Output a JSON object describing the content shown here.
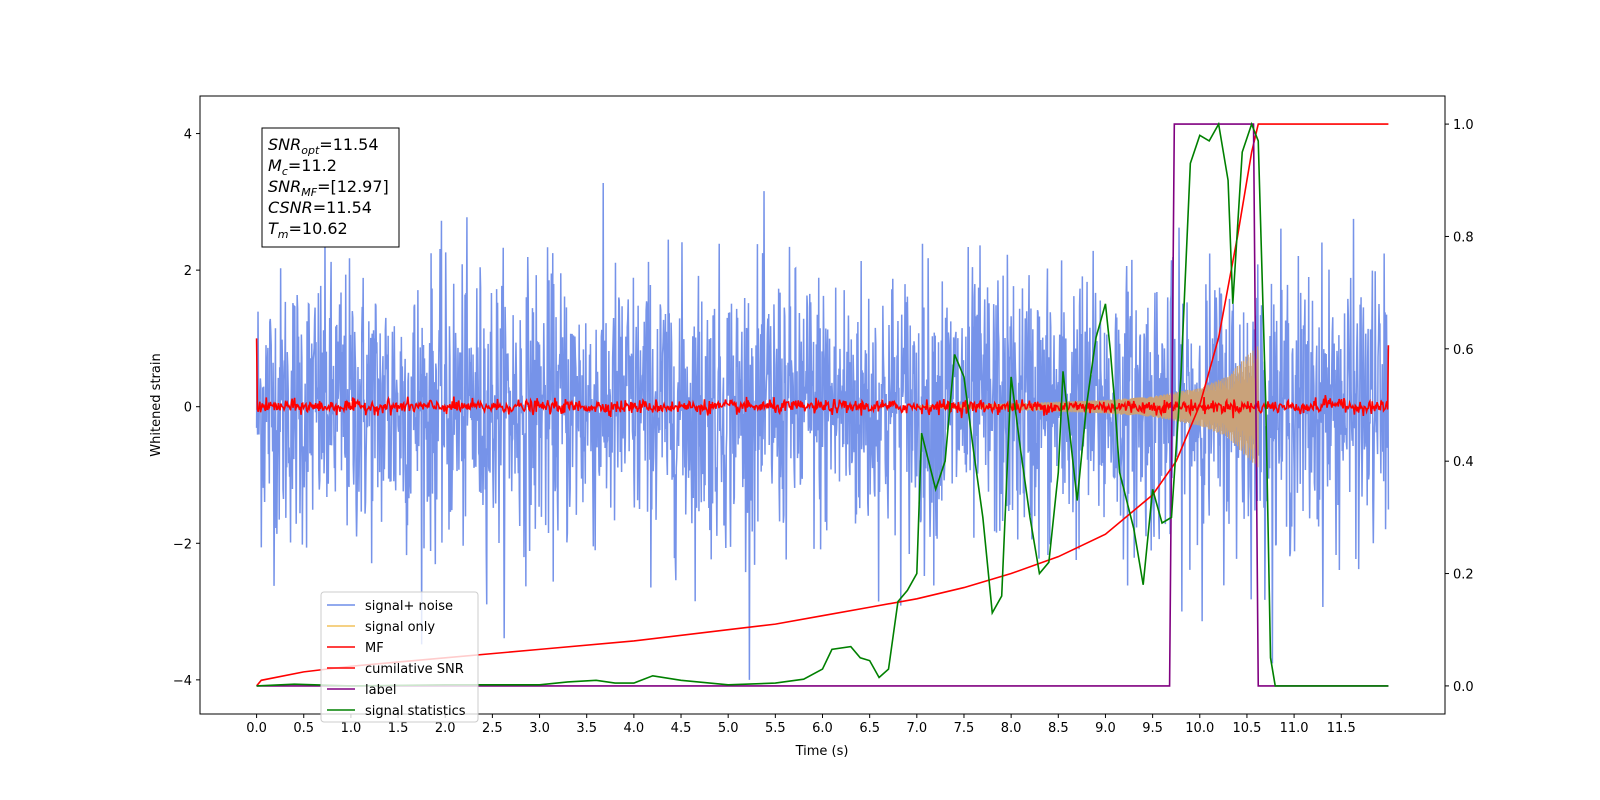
{
  "chart_data": {
    "type": "line",
    "xlabel": "Time (s)",
    "ylabel_left": "Whitened strain",
    "ylabel_right": "",
    "xlim": [
      -0.6,
      12.6
    ],
    "ylim_left": [
      -4.5,
      4.55
    ],
    "ylim_right": [
      -0.05,
      1.05
    ],
    "x_ticks": [
      "0.0",
      "0.5",
      "1.0",
      "1.5",
      "2.0",
      "2.5",
      "3.0",
      "3.5",
      "4.0",
      "4.5",
      "5.0",
      "5.5",
      "6.0",
      "6.5",
      "7.0",
      "7.5",
      "8.0",
      "8.5",
      "9.0",
      "9.5",
      "10.0",
      "10.5",
      "11.0",
      "11.5"
    ],
    "y_ticks_left": [
      "−4",
      "−2",
      "0",
      "2",
      "4"
    ],
    "y_ticks_right": [
      "0.0",
      "0.2",
      "0.4",
      "0.6",
      "0.8",
      "1.0"
    ],
    "annotation": {
      "lines": [
        {
          "sym": "SNR",
          "sub": "opt",
          "value": "=11.54"
        },
        {
          "sym": "M",
          "sub": "c",
          "value": "=11.2"
        },
        {
          "sym": "SNR",
          "sub": "MF",
          "value": "=[12.97]"
        },
        {
          "sym": "CSNR",
          "sub": "",
          "value": "=11.54"
        },
        {
          "sym": "T",
          "sub": "m",
          "value": "=10.62"
        }
      ]
    },
    "legend": {
      "placement": "lower-left",
      "entries": [
        {
          "label": "signal+ noise",
          "color": "#6f8de8"
        },
        {
          "label": "signal only",
          "color": "#f2c25b"
        },
        {
          "label": "MF",
          "color": "#ff0000"
        },
        {
          "label": "cumilative SNR",
          "color": "#ff0000"
        },
        {
          "label": "label",
          "color": "#800080"
        },
        {
          "label": "signal statistics",
          "color": "#008000"
        }
      ]
    },
    "series": [
      {
        "name": "signal+ noise",
        "axis": "left",
        "color": "#6f8de8",
        "x_range": [
          0,
          12.0
        ],
        "amplitude_std": 1.0,
        "min": -4.0,
        "max": 4.15
      },
      {
        "name": "signal only",
        "axis": "left",
        "color": "#f2c25b",
        "chirp_end": 10.62,
        "envelope": [
          [
            7.0,
            0.02
          ],
          [
            8.0,
            0.05
          ],
          [
            9.0,
            0.1
          ],
          [
            9.5,
            0.15
          ],
          [
            10.0,
            0.28
          ],
          [
            10.3,
            0.45
          ],
          [
            10.5,
            0.75
          ],
          [
            10.62,
            0.9
          ]
        ]
      },
      {
        "name": "MF",
        "axis": "left",
        "color": "#ff0000",
        "x_range": [
          0,
          12.0
        ],
        "amplitude_std": 0.05,
        "edge_start": 1.0,
        "edge_end": 0.9
      },
      {
        "name": "cumilative SNR",
        "axis": "right",
        "color": "#ff0000",
        "points": [
          [
            0.0,
            0.0
          ],
          [
            0.05,
            0.01
          ],
          [
            0.5,
            0.025
          ],
          [
            1.0,
            0.035
          ],
          [
            2.0,
            0.05
          ],
          [
            3.0,
            0.065
          ],
          [
            4.0,
            0.08
          ],
          [
            5.0,
            0.1
          ],
          [
            5.5,
            0.11
          ],
          [
            6.0,
            0.125
          ],
          [
            6.5,
            0.14
          ],
          [
            7.0,
            0.155
          ],
          [
            7.5,
            0.175
          ],
          [
            8.0,
            0.2
          ],
          [
            8.5,
            0.23
          ],
          [
            9.0,
            0.27
          ],
          [
            9.5,
            0.34
          ],
          [
            9.75,
            0.4
          ],
          [
            10.0,
            0.5
          ],
          [
            10.2,
            0.62
          ],
          [
            10.4,
            0.8
          ],
          [
            10.55,
            0.95
          ],
          [
            10.62,
            1.0
          ],
          [
            12.0,
            1.0
          ]
        ]
      },
      {
        "name": "label",
        "axis": "right",
        "color": "#800080",
        "points": [
          [
            0.0,
            0.0
          ],
          [
            9.68,
            0.0
          ],
          [
            9.73,
            1.0
          ],
          [
            10.57,
            1.0
          ],
          [
            10.62,
            0.0
          ],
          [
            12.0,
            0.0
          ]
        ]
      },
      {
        "name": "signal statistics",
        "axis": "right",
        "color": "#008000",
        "points": [
          [
            0.0,
            0.0
          ],
          [
            0.4,
            0.003
          ],
          [
            1.0,
            0.0
          ],
          [
            2.0,
            0.002
          ],
          [
            3.0,
            0.002
          ],
          [
            3.3,
            0.007
          ],
          [
            3.6,
            0.01
          ],
          [
            3.8,
            0.005
          ],
          [
            4.0,
            0.005
          ],
          [
            4.2,
            0.018
          ],
          [
            4.5,
            0.01
          ],
          [
            5.0,
            0.002
          ],
          [
            5.5,
            0.005
          ],
          [
            5.8,
            0.012
          ],
          [
            6.0,
            0.03
          ],
          [
            6.1,
            0.065
          ],
          [
            6.3,
            0.07
          ],
          [
            6.4,
            0.05
          ],
          [
            6.5,
            0.045
          ],
          [
            6.6,
            0.015
          ],
          [
            6.7,
            0.03
          ],
          [
            6.8,
            0.15
          ],
          [
            6.9,
            0.17
          ],
          [
            7.0,
            0.2
          ],
          [
            7.05,
            0.45
          ],
          [
            7.2,
            0.35
          ],
          [
            7.3,
            0.4
          ],
          [
            7.4,
            0.59
          ],
          [
            7.5,
            0.55
          ],
          [
            7.6,
            0.42
          ],
          [
            7.7,
            0.3
          ],
          [
            7.8,
            0.13
          ],
          [
            7.9,
            0.16
          ],
          [
            8.0,
            0.55
          ],
          [
            8.1,
            0.42
          ],
          [
            8.2,
            0.3
          ],
          [
            8.3,
            0.2
          ],
          [
            8.4,
            0.22
          ],
          [
            8.5,
            0.38
          ],
          [
            8.55,
            0.56
          ],
          [
            8.7,
            0.33
          ],
          [
            8.8,
            0.5
          ],
          [
            8.9,
            0.62
          ],
          [
            9.0,
            0.68
          ],
          [
            9.05,
            0.6
          ],
          [
            9.1,
            0.5
          ],
          [
            9.15,
            0.38
          ],
          [
            9.3,
            0.28
          ],
          [
            9.4,
            0.18
          ],
          [
            9.5,
            0.35
          ],
          [
            9.6,
            0.29
          ],
          [
            9.7,
            0.3
          ],
          [
            9.8,
            0.55
          ],
          [
            9.9,
            0.93
          ],
          [
            10.0,
            0.98
          ],
          [
            10.1,
            0.97
          ],
          [
            10.2,
            1.0
          ],
          [
            10.3,
            0.9
          ],
          [
            10.35,
            0.68
          ],
          [
            10.45,
            0.95
          ],
          [
            10.55,
            1.0
          ],
          [
            10.62,
            0.97
          ],
          [
            10.7,
            0.5
          ],
          [
            10.75,
            0.05
          ],
          [
            10.8,
            0.0
          ],
          [
            12.0,
            0.0
          ]
        ]
      }
    ]
  }
}
